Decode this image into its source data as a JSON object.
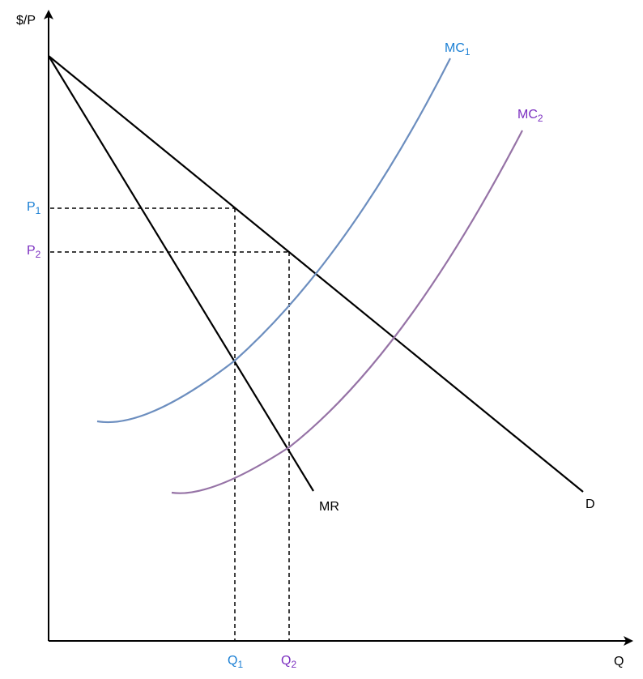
{
  "axes": {
    "y_label": "$/P",
    "x_label": "Q"
  },
  "curves": {
    "mc1": {
      "label": "MC",
      "sub": "1",
      "color": "#6c8ebf"
    },
    "mc2": {
      "label": "MC",
      "sub": "2",
      "color": "#9673a6"
    },
    "mr": {
      "label": "MR",
      "color": "#000000"
    },
    "d": {
      "label": "D",
      "color": "#000000"
    }
  },
  "prices": {
    "p1": {
      "label": "P",
      "sub": "1",
      "color": "#1a7fd4"
    },
    "p2": {
      "label": "P",
      "sub": "2",
      "color": "#7b2fc0"
    }
  },
  "quantities": {
    "q1": {
      "label": "Q",
      "sub": "1",
      "color": "#1a7fd4"
    },
    "q2": {
      "label": "Q",
      "sub": "2",
      "color": "#7b2fc0"
    }
  },
  "mc_label_colors": {
    "mc1": "#1a7fd4",
    "mc2": "#7b2fc0"
  }
}
